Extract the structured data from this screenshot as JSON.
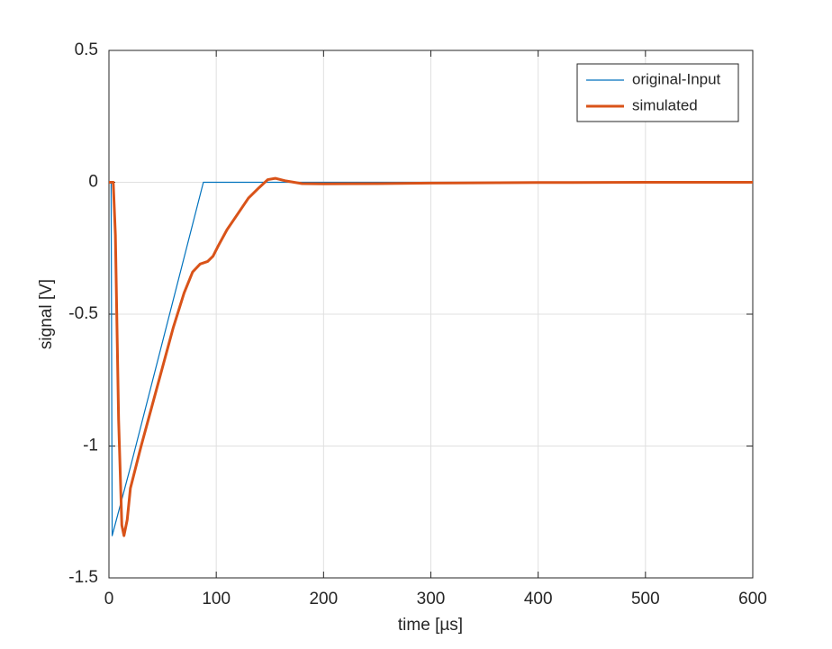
{
  "chart_data": {
    "type": "line",
    "xlabel": "time [µs]",
    "ylabel": "signal [V]",
    "xlim": [
      0,
      600
    ],
    "xticks": [
      0,
      100,
      200,
      300,
      400,
      500,
      600
    ],
    "ylim": [
      -1.5,
      0.5
    ],
    "yticks": [
      -1.5,
      -1,
      -0.5,
      0,
      0.5
    ],
    "grid": true,
    "legend": "upper right",
    "series": [
      {
        "name": "original-Input",
        "color": "#0072BD",
        "width": 1.2,
        "x": [
          0,
          2,
          3,
          20,
          88,
          600
        ],
        "values": [
          0,
          0,
          -1.34,
          -1.08,
          0,
          0
        ]
      },
      {
        "name": "simulated",
        "color": "#D95319",
        "width": 3,
        "x": [
          0,
          4,
          6,
          9,
          12,
          14,
          17,
          20,
          30,
          40,
          50,
          60,
          70,
          78,
          85,
          92,
          97,
          102,
          110,
          120,
          130,
          140,
          148,
          155,
          165,
          180,
          200,
          250,
          300,
          400,
          500,
          600
        ],
        "values": [
          0,
          0,
          -0.2,
          -0.9,
          -1.3,
          -1.34,
          -1.28,
          -1.16,
          -1.0,
          -0.85,
          -0.7,
          -0.55,
          -0.42,
          -0.34,
          -0.31,
          -0.3,
          -0.28,
          -0.24,
          -0.18,
          -0.12,
          -0.06,
          -0.02,
          0.01,
          0.015,
          0.005,
          -0.005,
          -0.006,
          -0.005,
          -0.003,
          -0.001,
          0,
          0
        ]
      }
    ]
  }
}
